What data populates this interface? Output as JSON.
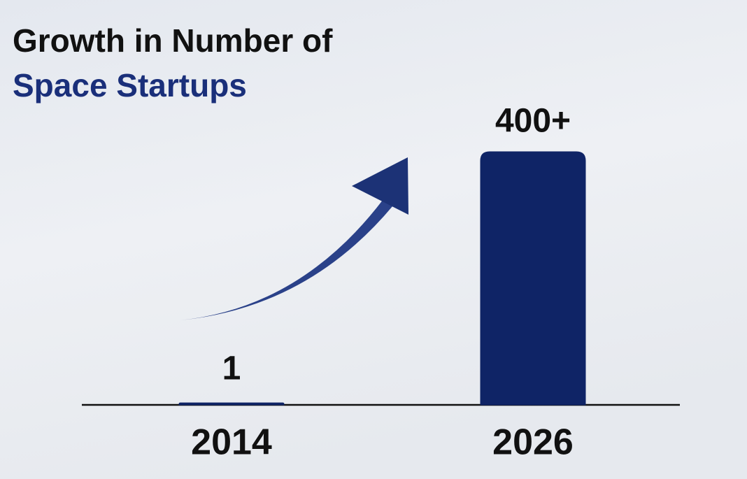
{
  "chart_data": {
    "type": "bar",
    "title": [
      "Growth in Number of",
      "Space Startups"
    ],
    "categories": [
      "2014",
      "2026"
    ],
    "values": [
      1,
      400
    ],
    "value_labels": [
      "1",
      "400+"
    ],
    "color": "#0f2466"
  }
}
